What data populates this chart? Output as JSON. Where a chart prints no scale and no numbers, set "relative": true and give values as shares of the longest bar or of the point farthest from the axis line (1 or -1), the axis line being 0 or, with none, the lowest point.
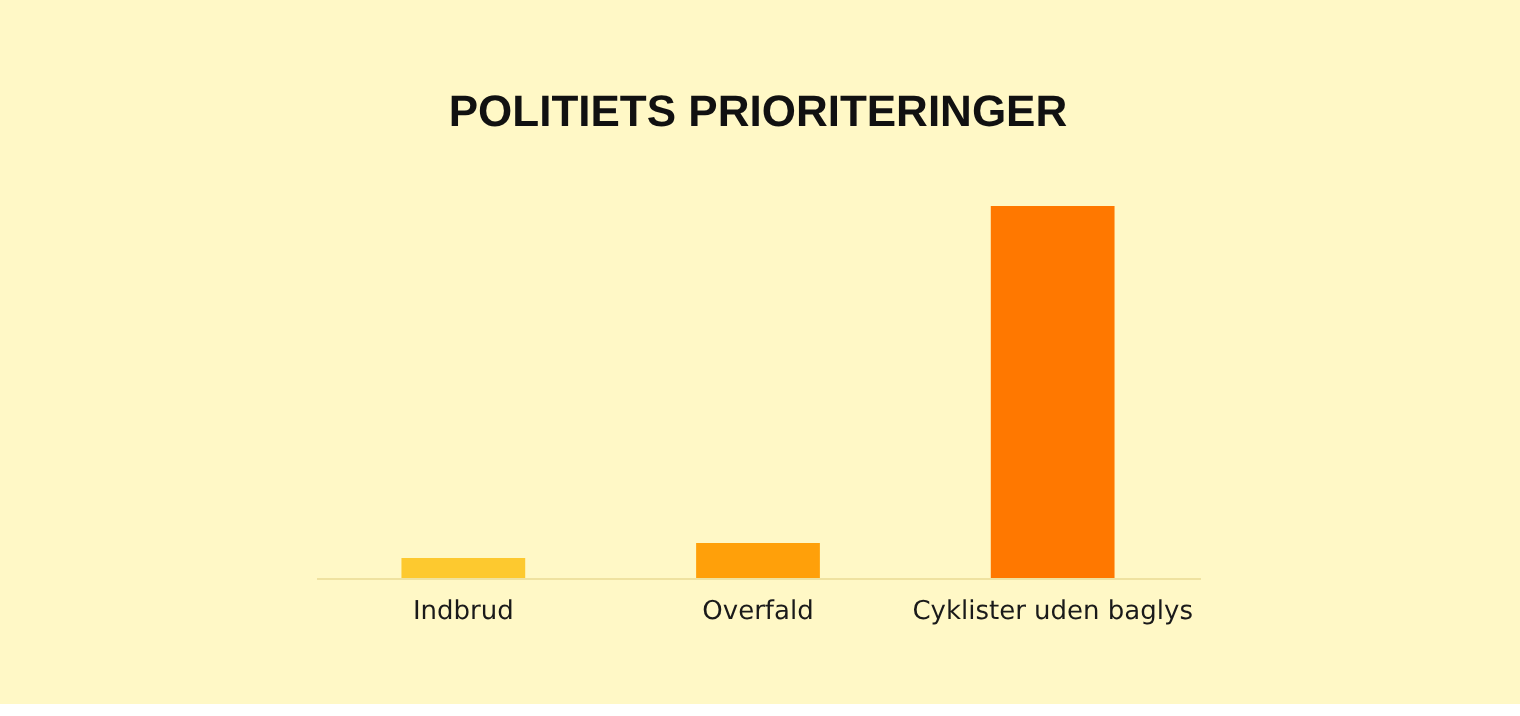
{
  "chart_data": {
    "type": "bar",
    "title": "POLITIETS PRIORITERINGER",
    "relative": true,
    "categories": [
      "Indbrud",
      "Overfald",
      "Cyklister uden baglys"
    ],
    "values": [
      0.054,
      0.094,
      1
    ],
    "colors": [
      "#fdc92f",
      "#ffa00a",
      "#ff7800"
    ],
    "grid": false
  }
}
